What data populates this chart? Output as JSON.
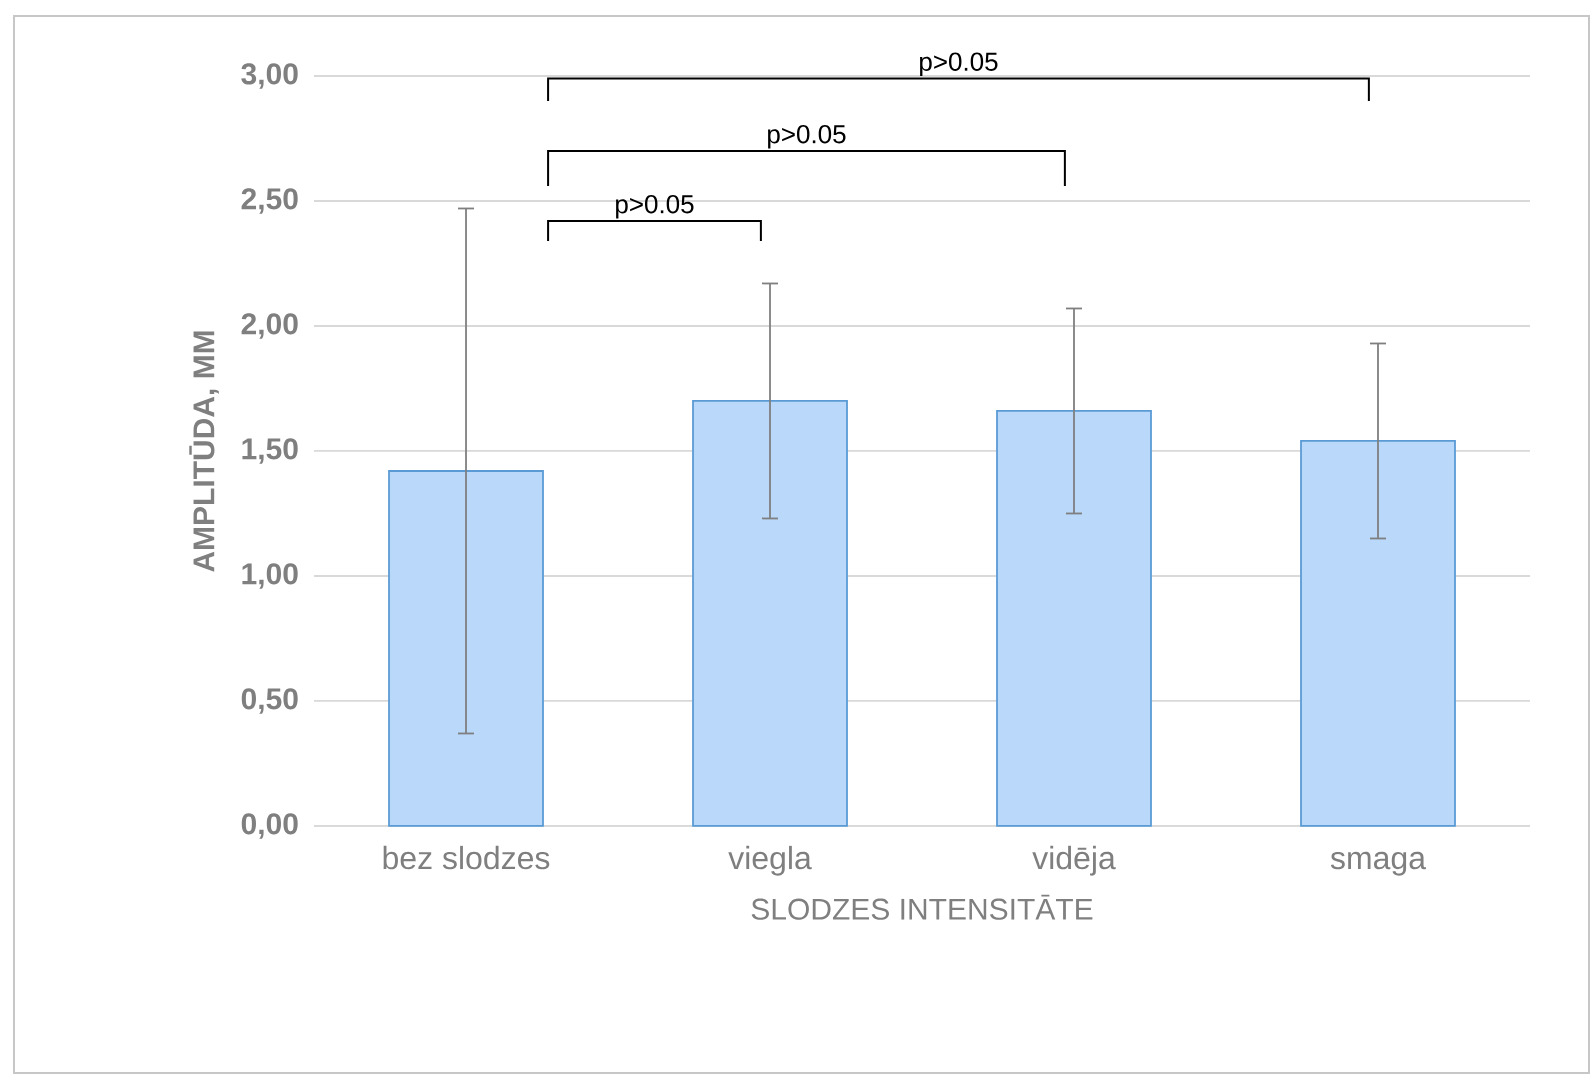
{
  "chart_data": {
    "type": "bar",
    "xlabel": "SLODZES INTENSITĀTE",
    "ylabel": "AMPLITŪDA, MM",
    "categories": [
      "bez slodzes",
      "viegla",
      "vidēja",
      "smaga"
    ],
    "values": [
      1.42,
      1.7,
      1.66,
      1.54
    ],
    "errors": [
      [
        0.37,
        2.47
      ],
      0.47,
      0.41,
      0.39
    ],
    "color": "#b9d8fa",
    "ylim": [
      0,
      3
    ],
    "yticks": [
      {
        "value": 0,
        "label": "0,00"
      },
      {
        "value": 0.5,
        "label": "0,50"
      },
      {
        "value": 1,
        "label": "1,00"
      },
      {
        "value": 1.5,
        "label": "1,50"
      },
      {
        "value": 2,
        "label": "2,00"
      },
      {
        "value": 2.5,
        "label": "2,50"
      },
      {
        "value": 3,
        "label": "3,00"
      }
    ],
    "grid": "y",
    "annotations": [
      "p>0.05",
      "p>0.05",
      "p>0.05"
    ]
  }
}
